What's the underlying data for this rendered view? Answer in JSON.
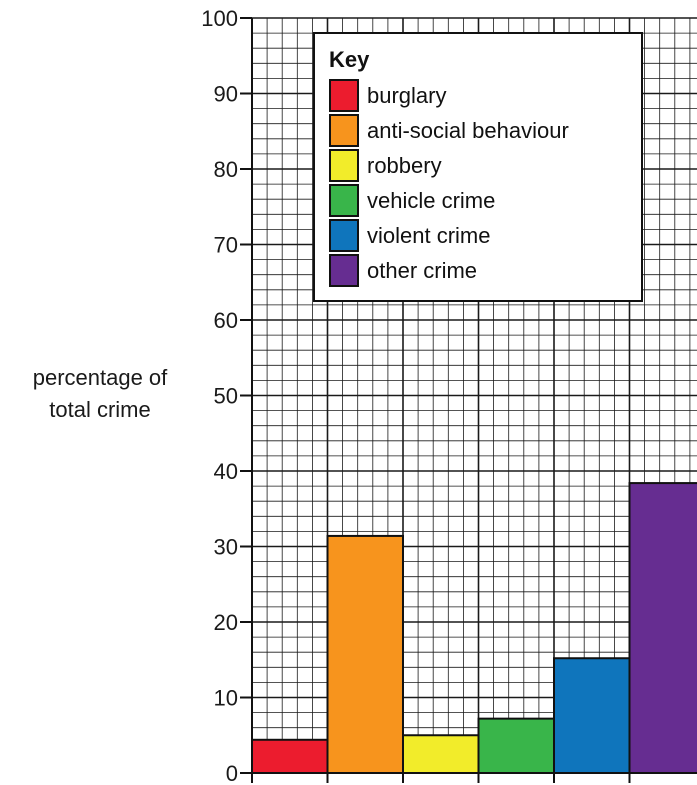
{
  "chart_data": {
    "type": "bar",
    "title": "",
    "ylabel": "percentage of total crime",
    "ylabel_lines": [
      "percentage of",
      "total crime"
    ],
    "ylim": [
      0,
      100
    ],
    "yticks": [
      0,
      10,
      20,
      30,
      40,
      50,
      60,
      70,
      80,
      90,
      100
    ],
    "grid": true,
    "legend": {
      "title": "Key",
      "placement": "top-center"
    },
    "categories": [
      "burglary",
      "anti-social behaviour",
      "robbery",
      "vehicle crime",
      "violent crime",
      "other crime"
    ],
    "values": [
      4.4,
      31.4,
      5.0,
      7.2,
      15.2,
      38.4
    ],
    "colors": [
      "#ec1c2e",
      "#f7941d",
      "#f2ec2a",
      "#39b54a",
      "#0f75bc",
      "#662d91"
    ]
  }
}
